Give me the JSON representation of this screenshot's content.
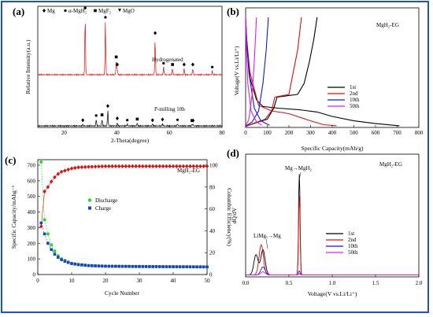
{
  "figure": {
    "panels": [
      {
        "label": "(a)",
        "legend": [
          "Mg",
          "α-MgH₂",
          "MgF₂",
          "MgO"
        ],
        "xlabel": "2-Theta(degree)",
        "ylabel": "Relative Intensity(a.u.)",
        "x_ticks": [
          "20",
          "40",
          "60",
          "80"
        ],
        "curve_labels": [
          "Hydrogenated",
          "P-milling 10h"
        ]
      },
      {
        "label": "(b)",
        "title": "MgH₂-EG",
        "xlabel": "Specific Capacity(mAh/g)",
        "ylabel": "Voltage(V vs.Li/Li⁺)",
        "x_ticks": [
          "0",
          "100",
          "200",
          "300",
          "400",
          "500",
          "600",
          "700",
          "800"
        ],
        "legend": [
          "1st",
          "2nd",
          "10th",
          "50th"
        ]
      },
      {
        "label": "(c)",
        "title": "MgH₂-EG",
        "xlabel": "Cycle Number",
        "ylabel": "Specific Capacity/mAhg⁻¹",
        "y2label": "Columbic Efficiency(%)",
        "x_ticks": [
          "0",
          "10",
          "20",
          "30",
          "40",
          "50"
        ],
        "y_ticks": [
          "0",
          "100",
          "200",
          "300",
          "400",
          "500",
          "600",
          "700"
        ],
        "y2_ticks": [
          "0",
          "20",
          "40",
          "60",
          "80",
          "100"
        ],
        "legend": [
          "Discharge",
          "Charge"
        ]
      },
      {
        "label": "(d)",
        "title": "MgH₂-EG",
        "xlabel": "Voltage(V vs.Li/Li⁺)",
        "ylabel": "dQ/dV",
        "x_ticks": [
          "0.0",
          "0.5",
          "1.0",
          "1.5",
          "2.0"
        ],
        "legend": [
          "1st",
          "2nd",
          "10th",
          "50th"
        ],
        "annotations": [
          "Mg→MgH₂",
          "LiMgₓ→Mg"
        ]
      }
    ]
  },
  "colors": {
    "frame": "#1f4fd6",
    "red": "#e01010",
    "black": "#000000",
    "blue": "#1515e0",
    "magenta": "#e020e0",
    "green": "#22dd22",
    "navy": "#1a3fd0"
  },
  "chart_data": [
    {
      "type": "line",
      "title": "",
      "xlabel": "2-Theta(degree)",
      "ylabel": "Relative Intensity(a.u.)",
      "xlim": [
        10,
        80
      ],
      "series": [
        {
          "name": "Hydrogenated",
          "peaks": [
            [
              28.0,
              1.0
            ],
            [
              35.7,
              0.85
            ],
            [
              39.8,
              0.22
            ],
            [
              40.2,
              0.1
            ],
            [
              54.6,
              0.6
            ],
            [
              57.8,
              0.12
            ],
            [
              61.2,
              0.1
            ],
            [
              65.6,
              0.1
            ],
            [
              68.9,
              0.1
            ],
            [
              76.3,
              0.06
            ]
          ]
        },
        {
          "name": "P-milling 10h",
          "peaks": [
            [
              27.1,
              0.05
            ],
            [
              32.2,
              0.18
            ],
            [
              34.4,
              0.2
            ],
            [
              36.6,
              0.45
            ],
            [
              40.2,
              0.1
            ],
            [
              44.0,
              0.05
            ],
            [
              47.8,
              0.08
            ],
            [
              53.6,
              0.05
            ],
            [
              57.4,
              0.07
            ],
            [
              63.1,
              0.06
            ],
            [
              68.6,
              0.04
            ],
            [
              69.0,
              0.04
            ]
          ]
        }
      ]
    },
    {
      "type": "line",
      "title": "MgH₂-EG",
      "xlabel": "Specific Capacity(mAh/g)",
      "ylabel": "Voltage(V vs.Li/Li⁺)",
      "xlim": [
        0,
        800
      ],
      "ylim": [
        0,
        2
      ],
      "series": [
        {
          "name": "1st",
          "discharge": [
            [
              0,
              2.0
            ],
            [
              5,
              1.5
            ],
            [
              20,
              0.9
            ],
            [
              50,
              0.5
            ],
            [
              80,
              0.38
            ],
            [
              150,
              0.35
            ],
            [
              250,
              0.32
            ],
            [
              330,
              0.28
            ],
            [
              400,
              0.2
            ],
            [
              500,
              0.12
            ],
            [
              600,
              0.07
            ],
            [
              710,
              0.03
            ]
          ],
          "charge": [
            [
              0,
              0.02
            ],
            [
              60,
              0.1
            ],
            [
              100,
              0.15
            ],
            [
              130,
              0.35
            ],
            [
              145,
              0.55
            ],
            [
              200,
              0.58
            ],
            [
              240,
              0.6
            ],
            [
              270,
              0.8
            ],
            [
              295,
              1.2
            ],
            [
              315,
              1.6
            ],
            [
              330,
              2.0
            ]
          ]
        },
        {
          "name": "2nd",
          "discharge": [
            [
              0,
              2.0
            ],
            [
              5,
              1.6
            ],
            [
              20,
              1.0
            ],
            [
              60,
              0.4
            ],
            [
              120,
              0.3
            ],
            [
              200,
              0.25
            ],
            [
              300,
              0.12
            ],
            [
              360,
              0.05
            ],
            [
              420,
              0.03
            ]
          ],
          "charge": [
            [
              0,
              0.02
            ],
            [
              40,
              0.08
            ],
            [
              90,
              0.15
            ],
            [
              120,
              0.3
            ],
            [
              135,
              0.55
            ],
            [
              200,
              0.6
            ],
            [
              215,
              0.9
            ],
            [
              240,
              1.4
            ],
            [
              258,
              2.0
            ]
          ]
        },
        {
          "name": "10th",
          "discharge": [
            [
              0,
              2.0
            ],
            [
              5,
              1.6
            ],
            [
              15,
              1.0
            ],
            [
              40,
              0.35
            ],
            [
              70,
              0.12
            ],
            [
              110,
              0.04
            ]
          ],
          "charge": [
            [
              0,
              0.02
            ],
            [
              30,
              0.1
            ],
            [
              60,
              0.3
            ],
            [
              80,
              0.8
            ],
            [
              95,
              1.4
            ],
            [
              105,
              2.0
            ]
          ]
        },
        {
          "name": "50th",
          "discharge": [
            [
              0,
              2.0
            ],
            [
              4,
              1.4
            ],
            [
              10,
              0.8
            ],
            [
              25,
              0.3
            ],
            [
              50,
              0.1
            ],
            [
              75,
              0.04
            ]
          ],
          "charge": [
            [
              0,
              0.02
            ],
            [
              15,
              0.15
            ],
            [
              30,
              0.6
            ],
            [
              40,
              1.2
            ],
            [
              50,
              2.0
            ]
          ]
        }
      ]
    },
    {
      "type": "scatter",
      "title": "MgH₂-EG",
      "xlabel": "Cycle Number",
      "ylabel": "Specific Capacity/mAhg⁻¹",
      "y2label": "Columbic Efficiency(%)",
      "xlim": [
        0,
        50
      ],
      "ylim": [
        0,
        700
      ],
      "y2lim": [
        0,
        100
      ],
      "series": [
        {
          "name": "Discharge",
          "axis": "left",
          "x": [
            1,
            2,
            3,
            4,
            5,
            6,
            7,
            8,
            9,
            10,
            12,
            15,
            20,
            30,
            40,
            50
          ],
          "values": [
            720,
            350,
            260,
            190,
            150,
            120,
            100,
            90,
            80,
            72,
            65,
            58,
            54,
            52,
            50,
            49
          ]
        },
        {
          "name": "Charge",
          "axis": "left",
          "x": [
            1,
            2,
            3,
            4,
            5,
            6,
            7,
            8,
            9,
            10,
            12,
            15,
            20,
            30,
            40,
            50
          ],
          "values": [
            330,
            260,
            200,
            160,
            130,
            110,
            95,
            85,
            77,
            70,
            63,
            57,
            53,
            51,
            50,
            49
          ]
        },
        {
          "name": "",
          "axis": "right",
          "x": [
            1,
            2,
            3,
            4,
            5,
            6,
            7,
            8,
            9,
            10,
            12,
            15,
            20,
            30,
            40,
            50
          ],
          "values": [
            44,
            76,
            80,
            85,
            89,
            92,
            94,
            95,
            96,
            97,
            98,
            98.5,
            99,
            99,
            99,
            99
          ]
        }
      ]
    },
    {
      "type": "line",
      "title": "MgH₂-EG",
      "xlabel": "Voltage(V vs.Li/Li⁺)",
      "ylabel": "dQ/dV",
      "xlim": [
        0,
        2.0
      ],
      "series": [
        {
          "name": "1st",
          "peaks": [
            [
              0.12,
              0.2
            ],
            [
              0.2,
              0.25
            ],
            [
              0.62,
              1.0
            ]
          ]
        },
        {
          "name": "2nd",
          "peaks": [
            [
              0.18,
              0.3
            ],
            [
              0.62,
              0.78
            ]
          ]
        },
        {
          "name": "10th",
          "peaks": [
            [
              0.2,
              0.08
            ],
            [
              0.62,
              0.04
            ]
          ]
        },
        {
          "name": "50th",
          "peaks": [
            [
              0.2,
              0.03
            ],
            [
              0.62,
              0.01
            ]
          ]
        }
      ]
    }
  ]
}
